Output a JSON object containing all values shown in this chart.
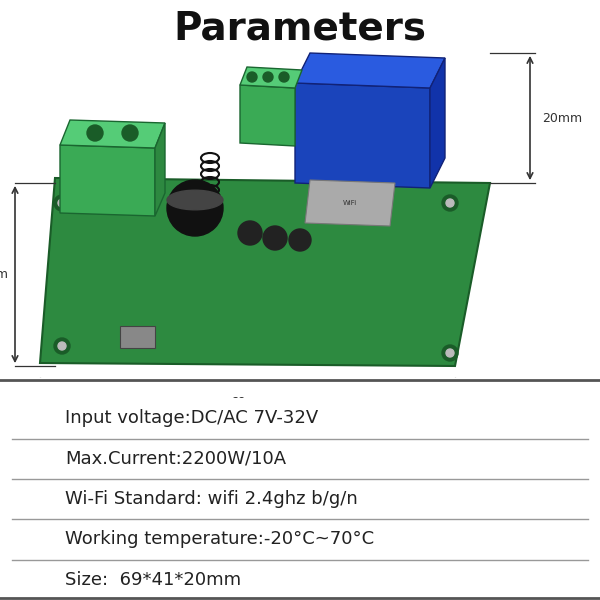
{
  "title": "Parameters",
  "title_fontsize": 28,
  "title_fontweight": "bold",
  "title_color": "#111111",
  "background_color": "#ffffff",
  "table_rows": [
    "Input voltage:DC/AC 7V-32V",
    "Max.Current:2200W/10A",
    "Wi-Fi Standard: wifi 2.4ghz b/g/n",
    "Working temperature:-20°C~70°C",
    "Size:  69*41*20mm"
  ],
  "table_fontsize": 13,
  "table_text_color": "#222222",
  "table_bg_color": "#ffffff",
  "line_color": "#999999",
  "pcb_color": "#2d8a40",
  "pcb_edge": "#1a5c28",
  "relay_color": "#1a44bb",
  "relay_top_color": "#2255cc",
  "terminal_color": "#3aaa55",
  "terminal_top_color": "#55cc77",
  "cap_color": "#111111",
  "cap_top_color": "#333333",
  "dim_color": "#333333",
  "dim_fontsize": 9
}
